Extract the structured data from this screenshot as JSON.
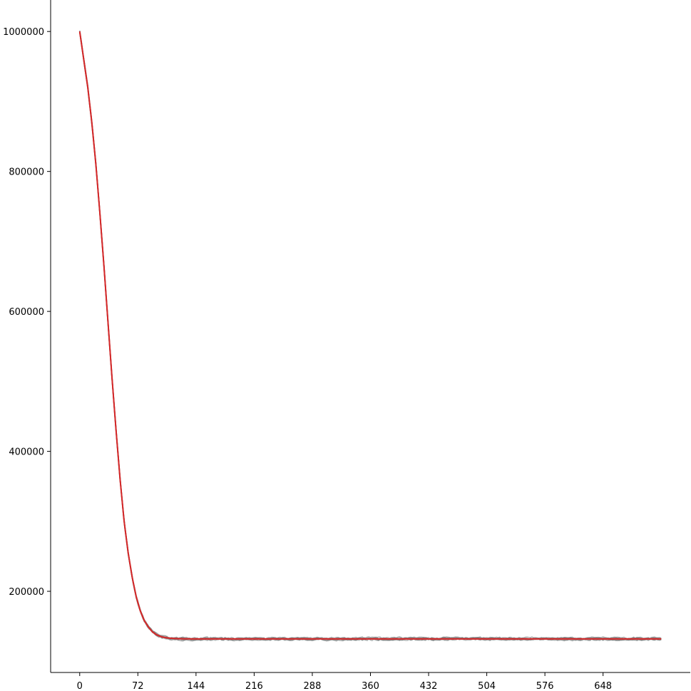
{
  "chart_data": {
    "type": "line",
    "title": "",
    "xlabel": "",
    "ylabel": "",
    "xlim": [
      -36,
      756
    ],
    "ylim": [
      84000,
      1045000
    ],
    "xticks": [
      0,
      72,
      144,
      216,
      288,
      360,
      432,
      504,
      576,
      648
    ],
    "yticks": [
      200000,
      400000,
      600000,
      800000,
      1000000
    ],
    "xtick_labels": [
      "0",
      "72",
      "144",
      "216",
      "288",
      "360",
      "432",
      "504",
      "576",
      "648"
    ],
    "ytick_labels": [
      "200000",
      "400000",
      "600000",
      "800000",
      "1000000"
    ],
    "grid": false,
    "legend": "none",
    "spines": "left-bottom",
    "x_max": 720,
    "colors": {
      "mean_line": "#d62728",
      "runs": "#7f7f7f"
    },
    "series": [
      {
        "role": "mean",
        "x": [
          0,
          5,
          10,
          15,
          20,
          25,
          30,
          35,
          40,
          45,
          50,
          55,
          60,
          65,
          70,
          75,
          80,
          85,
          90,
          95,
          100,
          105,
          110,
          115,
          120,
          125,
          130,
          140,
          150,
          160,
          180,
          200,
          240,
          300,
          360,
          420,
          480,
          540,
          600,
          660,
          720
        ],
        "values": [
          1000000,
          960000,
          920000,
          870000,
          810000,
          740000,
          665000,
          585000,
          505000,
          430000,
          360000,
          300000,
          255000,
          220000,
          192000,
          172000,
          158000,
          149000,
          142000,
          138000,
          135500,
          134000,
          133200,
          132700,
          132400,
          132200,
          132100,
          132000,
          132000,
          132000,
          132000,
          132000,
          132000,
          132000,
          132000,
          132000,
          132000,
          132000,
          132000,
          132000,
          132000
        ]
      }
    ]
  }
}
